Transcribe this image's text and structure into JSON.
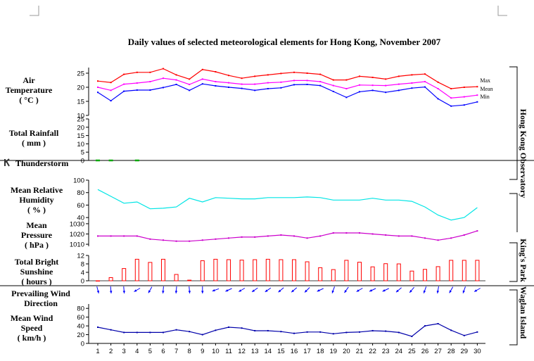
{
  "chart_data": {
    "type": "line",
    "title": "Daily values of selected meteorological elements for Hong Kong, November 2007",
    "days": [
      "1",
      "2",
      "3",
      "4",
      "5",
      "6",
      "7",
      "8",
      "9",
      "10",
      "11",
      "12",
      "13",
      "14",
      "15",
      "16",
      "17",
      "18",
      "19",
      "20",
      "21",
      "22",
      "23",
      "24",
      "25",
      "26",
      "27",
      "28",
      "29",
      "30"
    ],
    "station_labels": [
      "Hong Kong Observatory",
      "King's Park",
      "Waglan Island"
    ],
    "panels": {
      "temperature": {
        "label": [
          "Air",
          "Temperature",
          "( °C )"
        ],
        "ticks": [
          "25",
          "20",
          "15",
          "10"
        ],
        "ylim": [
          10,
          27
        ],
        "legend": [
          "Max",
          "Mean",
          "Min"
        ],
        "colors": [
          "#ff0000",
          "#ff00ff",
          "#0000ff"
        ],
        "max": [
          22.2,
          21.7,
          24.6,
          25.3,
          25.3,
          26.6,
          24.4,
          22.9,
          26.3,
          25.5,
          24.2,
          23.2,
          23.9,
          24.4,
          24.9,
          25.3,
          25.0,
          24.6,
          22.6,
          22.6,
          23.9,
          23.5,
          22.9,
          23.9,
          24.4,
          24.7,
          21.8,
          19.5,
          20.0,
          20.2
        ],
        "mean": [
          20.0,
          18.9,
          21.1,
          21.5,
          22.0,
          23.2,
          22.6,
          21.0,
          22.9,
          22.0,
          21.6,
          21.1,
          21.1,
          21.6,
          21.8,
          22.4,
          22.4,
          22.0,
          20.6,
          19.5,
          20.8,
          20.7,
          20.6,
          21.1,
          21.5,
          22.0,
          19.5,
          16.2,
          16.6,
          17.2
        ],
        "min": [
          18.2,
          15.2,
          18.6,
          19.0,
          19.0,
          19.9,
          21.0,
          18.9,
          21.2,
          20.5,
          20.0,
          19.6,
          18.9,
          19.5,
          19.8,
          20.9,
          21.0,
          20.6,
          18.5,
          16.4,
          18.4,
          18.9,
          18.2,
          18.9,
          19.7,
          20.1,
          15.9,
          13.3,
          13.7,
          14.8
        ]
      },
      "rainfall": {
        "label": [
          "Total Rainfall",
          "( mm )"
        ],
        "ticks": [
          "25",
          "20",
          "15",
          "10",
          "5",
          "0"
        ],
        "ylim": [
          0,
          25
        ],
        "trace_days": [
          "1",
          "2",
          "4"
        ],
        "color": "#00aa00"
      },
      "thunderstorm": {
        "label": "Thunderstorm"
      },
      "humidity": {
        "label": [
          "Mean Relative",
          "Humidity",
          "( % )"
        ],
        "ticks": [
          "100",
          "80",
          "60",
          "40"
        ],
        "ylim": [
          30,
          100
        ],
        "color": "#00e5e5",
        "values": [
          85,
          74,
          63,
          65,
          54,
          55,
          57,
          71,
          65,
          72,
          71,
          70,
          70,
          72,
          72,
          72,
          73,
          72,
          68,
          68,
          68,
          71,
          68,
          68,
          66,
          57,
          44,
          36,
          40,
          56
        ]
      },
      "pressure": {
        "label": [
          "Mean",
          "Pressure",
          "( hPa )"
        ],
        "ticks": [
          "1030",
          "1020",
          "1010"
        ],
        "ylim": [
          1008,
          1032
        ],
        "color": "#cc00cc",
        "values": [
          1018,
          1018,
          1018,
          1018,
          1015,
          1014,
          1013,
          1013,
          1014,
          1015,
          1016,
          1017,
          1017,
          1018,
          1019,
          1018,
          1016,
          1018,
          1021,
          1021,
          1021,
          1020,
          1019,
          1018,
          1018,
          1016,
          1014,
          1016,
          1019,
          1023
        ]
      },
      "sunshine": {
        "label": [
          "Total Bright",
          "Sunshine",
          "( hours )"
        ],
        "ticks": [
          "12",
          "8",
          "4",
          "0"
        ],
        "ylim": [
          0,
          12
        ],
        "color": "#ff0000",
        "values": [
          0,
          1.5,
          5.8,
          10.2,
          8.7,
          10.2,
          3.0,
          0.3,
          9.5,
          10.2,
          10.0,
          9.8,
          10.0,
          10.2,
          10.0,
          10.0,
          9.0,
          6.2,
          5.3,
          9.7,
          8.8,
          6.6,
          8.1,
          8.0,
          4.6,
          5.4,
          6.7,
          9.7,
          9.7,
          9.7
        ]
      },
      "wind_direction": {
        "label": [
          "Prevailing Wind",
          "Direction"
        ],
        "color": "#0000ff",
        "toward_deg": [
          165,
          175,
          175,
          240,
          210,
          185,
          185,
          175,
          180,
          250,
          245,
          240,
          235,
          235,
          230,
          230,
          225,
          245,
          200,
          215,
          240,
          245,
          245,
          230,
          220,
          200,
          190,
          210,
          200,
          240
        ]
      },
      "wind_speed": {
        "label": [
          "Mean Wind",
          "Speed",
          "( km/h )"
        ],
        "ticks": [
          "80",
          "60",
          "40",
          "20",
          "0"
        ],
        "ylim": [
          0,
          90
        ],
        "color": "#0000aa",
        "values": [
          37,
          31,
          25,
          25,
          25,
          25,
          31,
          27,
          20,
          30,
          37,
          35,
          29,
          29,
          27,
          23,
          26,
          26,
          22,
          25,
          26,
          29,
          28,
          25,
          16,
          40,
          45,
          30,
          18,
          26
        ]
      }
    }
  }
}
